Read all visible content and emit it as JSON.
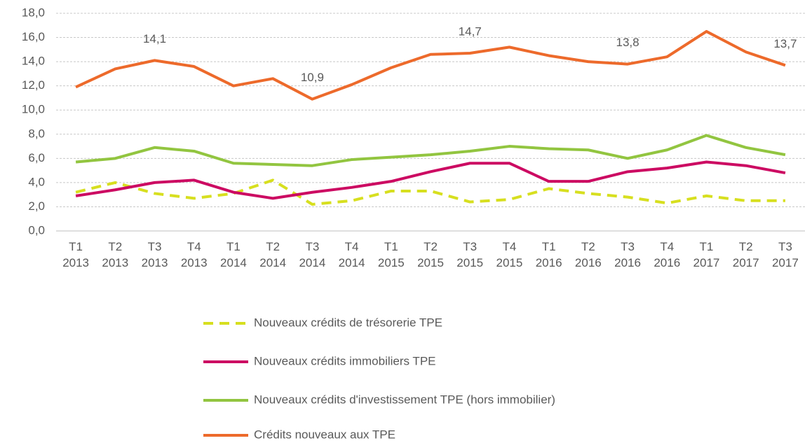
{
  "chart_data": {
    "type": "line",
    "categories": [
      "T1 2013",
      "T2 2013",
      "T3 2013",
      "T4 2013",
      "T1 2014",
      "T2 2014",
      "T3 2014",
      "T4 2014",
      "T1 2015",
      "T2 2015",
      "T3 2015",
      "T4 2015",
      "T1 2016",
      "T2 2016",
      "T3 2016",
      "T4 2016",
      "T1 2017",
      "T2 2017",
      "T3 2017"
    ],
    "series": [
      {
        "name": "Nouveaux crédits de trésorerie TPE",
        "color": "#d7df1f",
        "dashed": true,
        "values": [
          3.2,
          4.0,
          3.1,
          2.7,
          3.1,
          4.2,
          2.2,
          2.5,
          3.3,
          3.3,
          2.4,
          2.6,
          3.5,
          3.1,
          2.8,
          2.3,
          2.9,
          2.5,
          2.5
        ]
      },
      {
        "name": "Nouveaux crédits immobiliers TPE",
        "color": "#cc0a62",
        "dashed": false,
        "values": [
          2.9,
          3.4,
          4.0,
          4.2,
          3.2,
          2.7,
          3.2,
          3.6,
          4.1,
          4.9,
          5.6,
          5.6,
          4.1,
          4.1,
          4.9,
          5.2,
          5.7,
          5.4,
          4.8
        ]
      },
      {
        "name": "Nouveaux crédits d'investissement TPE (hors immobilier)",
        "color": "#92c540",
        "dashed": false,
        "values": [
          5.7,
          6.0,
          6.9,
          6.6,
          5.6,
          5.5,
          5.4,
          5.9,
          6.1,
          6.3,
          6.6,
          7.0,
          6.8,
          6.7,
          6.0,
          6.7,
          7.9,
          6.9,
          6.3
        ]
      },
      {
        "name": "Crédits nouveaux aux TPE",
        "color": "#ed6a2b",
        "dashed": false,
        "values": [
          11.9,
          13.4,
          14.1,
          13.6,
          12.0,
          12.6,
          10.9,
          12.1,
          13.5,
          14.6,
          14.7,
          15.2,
          14.5,
          14.0,
          13.8,
          14.4,
          16.5,
          14.8,
          13.7
        ],
        "value_labels": [
          null,
          null,
          "14,1",
          null,
          null,
          null,
          "10,9",
          null,
          null,
          null,
          "14,7",
          null,
          null,
          null,
          "13,8",
          null,
          null,
          null,
          "13,7"
        ]
      }
    ],
    "ylim": [
      0,
      18
    ],
    "yticks": [
      {
        "value": 0,
        "label": "0,0"
      },
      {
        "value": 2,
        "label": "2,0"
      },
      {
        "value": 4,
        "label": "4,0"
      },
      {
        "value": 6,
        "label": "6,0"
      },
      {
        "value": 8,
        "label": "8,0"
      },
      {
        "value": 10,
        "label": "10,0"
      },
      {
        "value": 12,
        "label": "12,0"
      },
      {
        "value": 14,
        "label": "14,0"
      },
      {
        "value": 16,
        "label": "16,0"
      },
      {
        "value": 18,
        "label": "18,0"
      }
    ],
    "grid": true,
    "legend": "bottom"
  }
}
